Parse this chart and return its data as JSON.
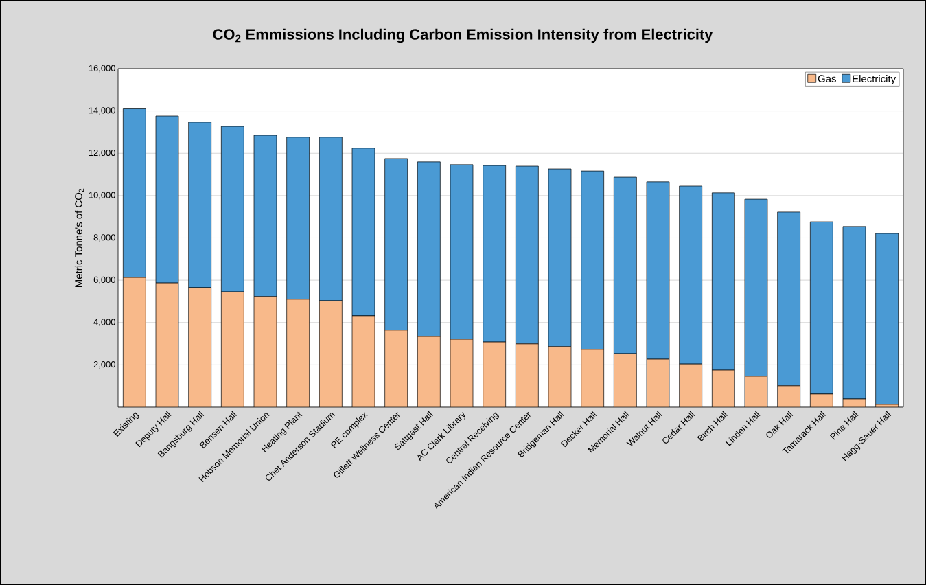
{
  "chart_data": {
    "type": "bar",
    "stacked": true,
    "title": "CO$_{2}$ Emmissions Including Carbon Emission Intensity from Electricity",
    "ylabel": "Metric Tonne's of CO$_{2}$",
    "categories": [
      "Existing",
      "Deputy Hall",
      "Bangsburg Hall",
      "Bensen Hall",
      "Hobson Memorial Union",
      "Heating Plant",
      "Chet Anderson Stadium",
      "PE  complex",
      "Gillett Wellness Center",
      "Sattgast Hall",
      "AC Clark Library",
      "Central Receiving",
      "American Indian Resource Center",
      "Bridgeman Hall",
      "Decker Hall",
      "Memorial Hall",
      "Walnut Hall",
      "Cedar Hall",
      "Birch Hall",
      "Linden Hall",
      "Oak Hall",
      "Tamarack Hall",
      "Pine Hall",
      "Hagg-Sauer Hall"
    ],
    "series": [
      {
        "name": "Gas",
        "color": "#f8b98a",
        "values": [
          6130,
          5870,
          5650,
          5450,
          5230,
          5100,
          5030,
          4320,
          3640,
          3340,
          3210,
          3080,
          2990,
          2860,
          2730,
          2530,
          2270,
          2040,
          1750,
          1460,
          1010,
          620,
          390,
          130
        ]
      },
      {
        "name": "Electricity",
        "color": "#4a9ad4",
        "values": [
          7970,
          7890,
          7820,
          7820,
          7620,
          7660,
          7730,
          7920,
          8110,
          8250,
          8250,
          8340,
          8400,
          8400,
          8430,
          8340,
          8380,
          8410,
          8380,
          8370,
          8210,
          8140,
          8150,
          8080
        ]
      }
    ],
    "ylim": [
      0,
      16000
    ],
    "yticks": [
      {
        "value": 0,
        "label": "-"
      },
      {
        "value": 2000,
        "label": "2,000"
      },
      {
        "value": 4000,
        "label": "4,000"
      },
      {
        "value": 6000,
        "label": "6,000"
      },
      {
        "value": 8000,
        "label": "8,000"
      },
      {
        "value": 10000,
        "label": "10,000"
      },
      {
        "value": 12000,
        "label": "12,000"
      },
      {
        "value": 14000,
        "label": "14,000"
      },
      {
        "value": 16000,
        "label": "16,000"
      }
    ],
    "grid": "y",
    "legend": "top right"
  }
}
